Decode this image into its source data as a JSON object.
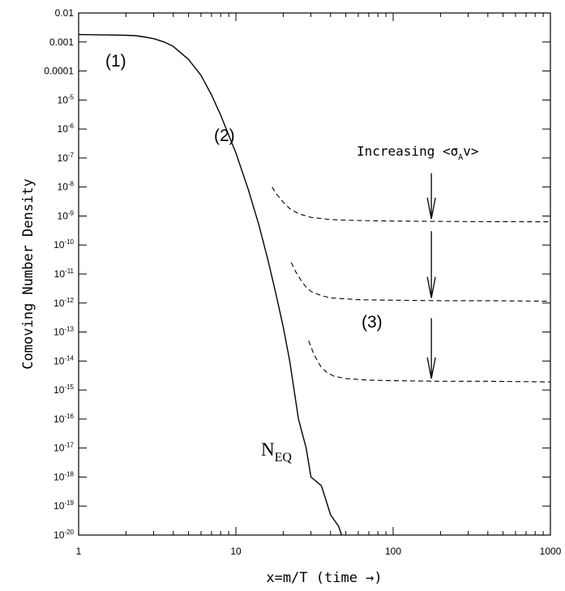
{
  "chart_data": {
    "type": "line",
    "xlabel": "x=m/T (time →)",
    "ylabel": "Comoving Number Density",
    "xscale": "log",
    "yscale": "log",
    "xlim": [
      1,
      1000
    ],
    "ylim": [
      1e-20,
      0.01
    ],
    "x_tick_labels": [
      {
        "value": 1,
        "label": "1"
      },
      {
        "value": 10,
        "label": "10"
      },
      {
        "value": 100,
        "label": "100"
      },
      {
        "value": 1000,
        "label": "1000"
      }
    ],
    "y_tick_labels": [
      {
        "value": 0.01,
        "base": "0.01",
        "exp": ""
      },
      {
        "value": 0.001,
        "base": "0.001",
        "exp": ""
      },
      {
        "value": 0.0001,
        "base": "0.0001",
        "exp": ""
      },
      {
        "value": 1e-05,
        "base": "10",
        "exp": "-5"
      },
      {
        "value": 1e-06,
        "base": "10",
        "exp": "-6"
      },
      {
        "value": 1e-07,
        "base": "10",
        "exp": "-7"
      },
      {
        "value": 1e-08,
        "base": "10",
        "exp": "-8"
      },
      {
        "value": 1e-09,
        "base": "10",
        "exp": "-9"
      },
      {
        "value": 1e-10,
        "base": "10",
        "exp": "-10"
      },
      {
        "value": 1e-11,
        "base": "10",
        "exp": "-11"
      },
      {
        "value": 1e-12,
        "base": "10",
        "exp": "-12"
      },
      {
        "value": 1e-13,
        "base": "10",
        "exp": "-13"
      },
      {
        "value": 1e-14,
        "base": "10",
        "exp": "-14"
      },
      {
        "value": 1e-15,
        "base": "10",
        "exp": "-15"
      },
      {
        "value": 1e-16,
        "base": "10",
        "exp": "-16"
      },
      {
        "value": 1e-17,
        "base": "10",
        "exp": "-17"
      },
      {
        "value": 1e-18,
        "base": "10",
        "exp": "-18"
      },
      {
        "value": 1e-19,
        "base": "10",
        "exp": "-19"
      },
      {
        "value": 1e-20,
        "base": "10",
        "exp": "-20"
      }
    ],
    "series": [
      {
        "name": "NEQ",
        "style": "solid",
        "color": "#000000",
        "x": [
          1,
          1.5,
          2,
          2.3,
          2.6,
          3,
          3.5,
          4,
          5,
          6,
          7,
          8,
          10,
          12,
          14,
          16,
          18,
          20,
          22,
          25,
          28,
          30,
          35,
          40,
          45,
          47
        ],
        "y": [
          0.0018,
          0.00175,
          0.0017,
          0.00165,
          0.0015,
          0.0013,
          0.001,
          0.0007,
          0.00025,
          7e-05,
          1.5e-05,
          3e-06,
          1.5e-07,
          8e-09,
          5e-10,
          3e-11,
          2e-12,
          1.5e-13,
          1e-14,
          1e-16,
          1e-17,
          1e-18,
          5e-19,
          5e-20,
          2e-20,
          1e-20
        ]
      },
      {
        "name": "",
        "style": "dashed",
        "color": "#000000",
        "x": [
          17,
          18,
          20,
          22,
          25,
          30,
          40,
          60,
          100,
          200,
          400,
          1000
        ],
        "y": [
          1e-08,
          6e-09,
          3e-09,
          1.8e-09,
          1.2e-09,
          9e-10,
          7.5e-10,
          7e-10,
          6.7e-10,
          6.5e-10,
          6.4e-10,
          6.3e-10
        ]
      },
      {
        "name": "",
        "style": "dashed",
        "color": "#000000",
        "x": [
          22.5,
          24,
          26,
          28,
          30,
          35,
          40,
          60,
          100,
          200,
          400,
          1000
        ],
        "y": [
          2.5e-11,
          1.2e-11,
          6e-12,
          3.5e-12,
          2.5e-12,
          1.8e-12,
          1.5e-12,
          1.3e-12,
          1.25e-12,
          1.2e-12,
          1.2e-12,
          1.15e-12
        ]
      },
      {
        "name": "",
        "style": "dashed",
        "color": "#000000",
        "x": [
          29,
          31,
          33,
          35,
          38,
          42,
          50,
          70,
          100,
          200,
          400,
          1000
        ],
        "y": [
          5e-14,
          2e-14,
          1e-14,
          6e-15,
          4e-15,
          3e-15,
          2.5e-15,
          2.2e-15,
          2.1e-15,
          2e-15,
          2e-15,
          1.9e-15
        ]
      }
    ],
    "arrows": [
      {
        "x": 175,
        "y_from": 3e-08,
        "y_to": 8e-10
      },
      {
        "x": 175,
        "y_from": 3e-10,
        "y_to": 1.5e-12
      },
      {
        "x": 175,
        "y_from": 3e-13,
        "y_to": 2.5e-15
      }
    ],
    "annotations": {
      "label1": "(1)",
      "label2": "(2)",
      "label3": "(3)",
      "neq_main": "N",
      "neq_sub": "EQ",
      "increasing_prefix": "Increasing <σ",
      "increasing_sub": "A",
      "increasing_suffix": "v>"
    },
    "grid": false,
    "legend": "none"
  }
}
